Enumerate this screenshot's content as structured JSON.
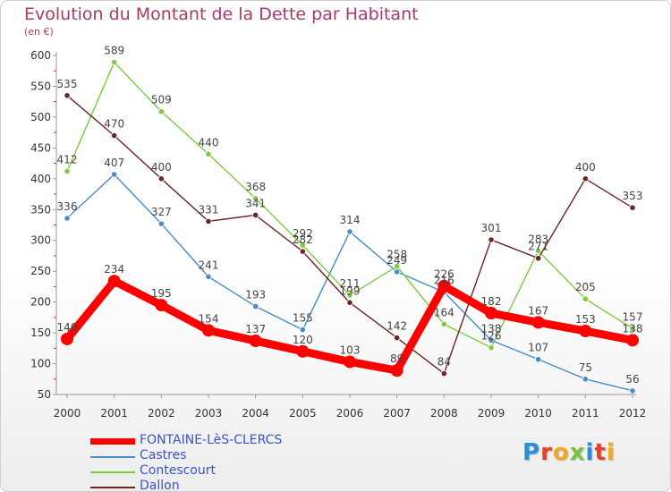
{
  "header": {
    "title": "Evolution du Montant de la Dette par Habitant",
    "subtitle": "(en €)"
  },
  "chart_data": {
    "type": "line",
    "title": "Evolution du Montant de la Dette par Habitant",
    "subtitle": "(en €)",
    "xlabel": "",
    "ylabel": "",
    "x": [
      "2000",
      "2001",
      "2002",
      "2003",
      "2004",
      "2005",
      "2006",
      "2007",
      "2008",
      "2009",
      "2010",
      "2011",
      "2012"
    ],
    "ylim": [
      50,
      600
    ],
    "yticks": [
      50,
      100,
      150,
      200,
      250,
      300,
      350,
      400,
      450,
      500,
      550,
      600
    ],
    "grid": false,
    "legend_position": "bottom-left",
    "series": [
      {
        "name": "FONTAINE-LèS-CLERCS",
        "color": "#ff0000",
        "values": [
          140,
          234,
          195,
          154,
          137,
          120,
          103,
          89,
          226,
          182,
          167,
          153,
          138
        ],
        "labels": [
          "140",
          "234",
          "195",
          "154",
          "137",
          "120",
          "103",
          "89",
          "226",
          "182",
          "167",
          "153",
          "138"
        ]
      },
      {
        "name": "Castres",
        "color": "#4a8ac8",
        "values": [
          336,
          407,
          327,
          241,
          193,
          155,
          314,
          249,
          216,
          138,
          107,
          75,
          56
        ],
        "labels": [
          "336",
          "407",
          "327",
          "241",
          "193",
          "155",
          "314",
          "249",
          "216",
          "138",
          "107",
          "75",
          "56"
        ]
      },
      {
        "name": "Contescourt",
        "color": "#7ccc3c",
        "values": [
          412,
          589,
          509,
          440,
          368,
          292,
          211,
          258,
          164,
          126,
          283,
          205,
          157
        ],
        "labels": [
          "412",
          "589",
          "509",
          "440",
          "368",
          "292",
          "211",
          "258",
          "164",
          "126",
          "283",
          "205",
          "157"
        ]
      },
      {
        "name": "Dallon",
        "color": "#6a2424",
        "values": [
          535,
          470,
          400,
          331,
          341,
          282,
          199,
          142,
          84,
          301,
          271,
          400,
          353
        ],
        "labels": [
          "535",
          "470",
          "400",
          "331",
          "341",
          "282",
          "199",
          "142",
          "84",
          "301",
          "271",
          "400",
          "353"
        ]
      }
    ]
  },
  "logo": {
    "letters": [
      "P",
      "r",
      "o",
      "x",
      "i",
      "t",
      "i"
    ],
    "colors": [
      "#2a8fd4",
      "#e8402a",
      "#f5a623",
      "#7cc23c",
      "#2a8fd4",
      "#e8402a",
      "#f5a623"
    ]
  }
}
